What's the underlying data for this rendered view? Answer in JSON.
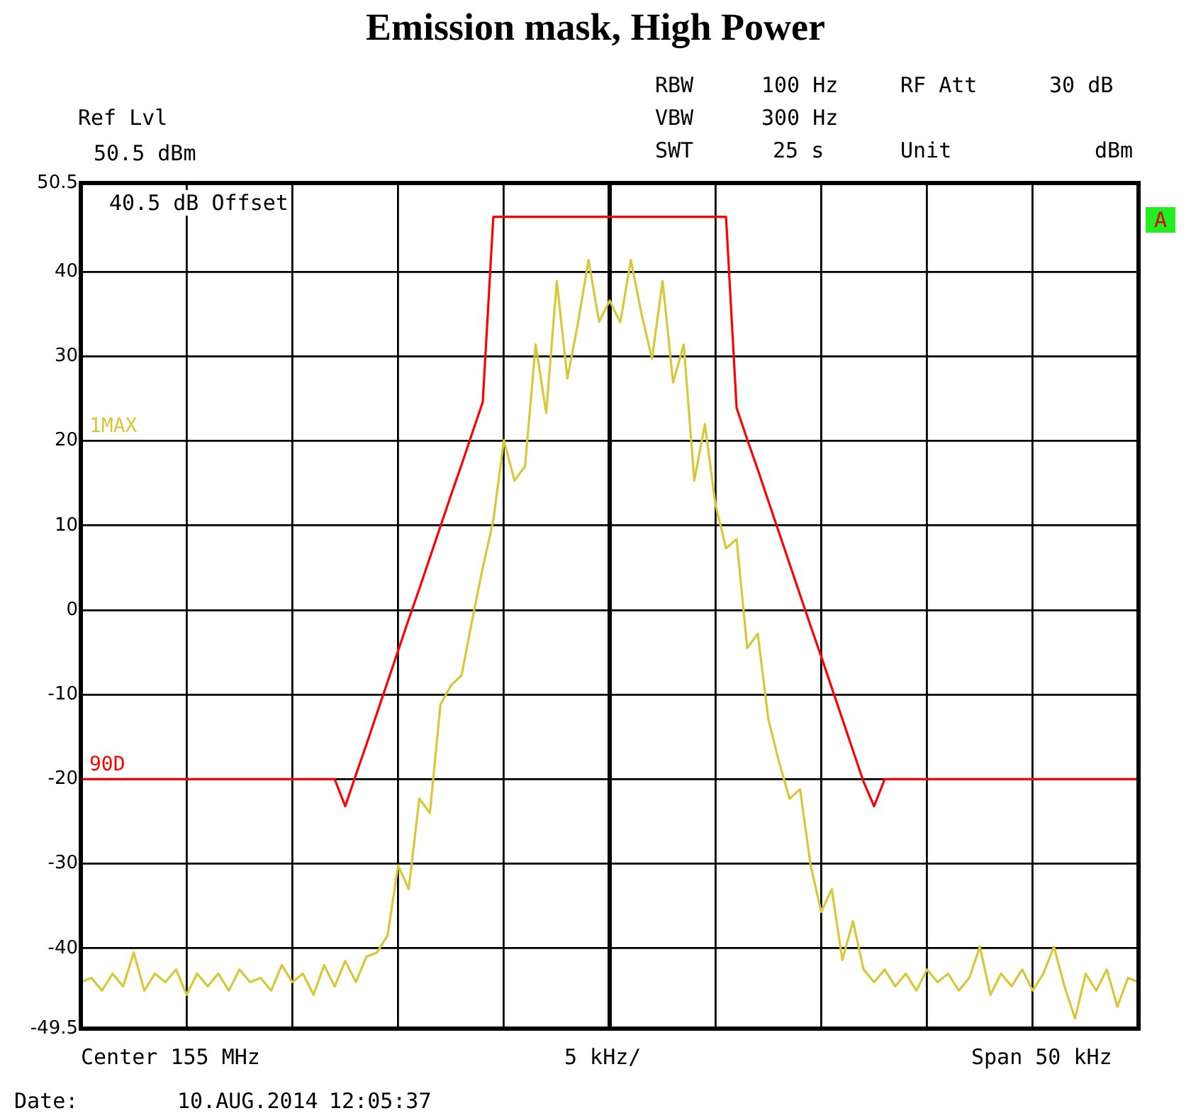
{
  "chart_data": {
    "type": "line",
    "title": "Emission mask, High Power",
    "annotations": [
      "Ref Lvl",
      "50.5 dBm",
      "RBW",
      "100 Hz",
      "VBW",
      "300 Hz",
      "SWT",
      "25 s",
      "RF Att",
      "30 dB",
      "Unit",
      "dBm",
      "40.5 dB Offset",
      "A",
      "Center 155 MHz",
      "5 kHz/",
      "Span 50 kHz",
      "Date:",
      "10.AUG.2014",
      "12:05:37"
    ],
    "categories": [
      null,
      null,
      null,
      null,
      null,
      null,
      null,
      null,
      null,
      null,
      null,
      null,
      null,
      null,
      null,
      null,
      null,
      null,
      null,
      null,
      null,
      null,
      null,
      null,
      null,
      null,
      null,
      null,
      null,
      null,
      null,
      null,
      null,
      null,
      null,
      null,
      null,
      null,
      null,
      null,
      null,
      null,
      null,
      null,
      null,
      null,
      null,
      null,
      null,
      null,
      null,
      null,
      null,
      null,
      null,
      null,
      null,
      null,
      null,
      null,
      null,
      null,
      null,
      null,
      null,
      null,
      null,
      null,
      null,
      null,
      null,
      null,
      null,
      null,
      null,
      null,
      null,
      null,
      null,
      null,
      null,
      null,
      null,
      null,
      null,
      null,
      null,
      null,
      null,
      null,
      null,
      null,
      null,
      null,
      null,
      null,
      null,
      null,
      null,
      null,
      null
    ],
    "series": [
      {
        "name": "1MAX",
        "color": "#d8c838",
        "values": [
          -44,
          -43.5,
          -45,
          -43,
          -44.5,
          -40.5,
          -45,
          -43,
          -44,
          -42.5,
          -45.5,
          -43,
          -44.5,
          -43,
          -45,
          -42.5,
          -44,
          -43.5,
          -45,
          -42,
          -44,
          -43,
          -45.5,
          -42,
          -44.5,
          -41.5,
          -44,
          -41,
          -40.5,
          -38.5,
          -30.2,
          -33,
          -22.3,
          -24,
          -11.2,
          -8.9,
          -7.7,
          -1.2,
          5,
          10.6,
          20.1,
          15.3,
          17,
          31.4,
          23.3,
          38.9,
          27.4,
          33.9,
          41.4,
          34.1,
          36.6,
          34,
          41.4,
          35.1,
          29.7,
          38.9,
          26.9,
          31.4,
          15.3,
          22,
          12.5,
          7.3,
          8.4,
          -4.5,
          -2.8,
          -12.9,
          -17.9,
          -22.3,
          -21.2,
          -30.2,
          -35.7,
          -33,
          -41.4,
          -36.8,
          -42.5,
          -44,
          -42.5,
          -44.5,
          -43,
          -45,
          -42.5,
          -44,
          -43,
          -45,
          -43.5,
          -39.8,
          -45.5,
          -43,
          -44.5,
          -42.5,
          -45,
          -43,
          -39.8,
          -44.5,
          -48.3,
          -43,
          -45,
          -42.5,
          -46.9,
          -43.5,
          -44
        ]
      },
      {
        "name": "90D",
        "color": "#ff0000",
        "values": [
          -20,
          -20,
          -20,
          -20,
          -20,
          -20,
          -20,
          -20,
          -20,
          -20,
          -20,
          -20,
          -20,
          -20,
          -20,
          -20,
          -20,
          -20,
          -20,
          -20,
          -20,
          -20,
          -20,
          -20,
          -20,
          -23.2,
          -19.5,
          -15.9,
          -12.2,
          -8.5,
          -4.8,
          -1.1,
          2.5,
          6.2,
          9.9,
          13.6,
          17.2,
          20.9,
          24.6,
          46.5,
          46.5,
          46.5,
          46.5,
          46.5,
          46.5,
          46.5,
          46.5,
          46.5,
          46.5,
          46.5,
          46.5,
          46.5,
          46.5,
          46.5,
          46.5,
          46.5,
          46.5,
          46.5,
          46.5,
          46.5,
          46.5,
          46.5,
          23.9,
          20.2,
          16.6,
          12.9,
          9.2,
          5.5,
          1.8,
          -1.9,
          -5.5,
          -9.2,
          -12.9,
          -16.6,
          -20.3,
          -23.2,
          -20,
          -20,
          -20,
          -20,
          -20,
          -20,
          -20,
          -20,
          -20,
          -20,
          -20,
          -20,
          -20,
          -20,
          -20,
          -20,
          -20,
          -20,
          -20,
          -20,
          -20,
          -20,
          -20,
          -20,
          -20
        ]
      }
    ],
    "ylim": [
      -49.5,
      50.5
    ],
    "yticks": [
      -49.5,
      -40,
      -30,
      -20,
      -10,
      0,
      10,
      20,
      30,
      40,
      50.5
    ],
    "tick_labels": "y",
    "grid": true,
    "legend": false,
    "marker": "none",
    "line_style": "solid"
  }
}
